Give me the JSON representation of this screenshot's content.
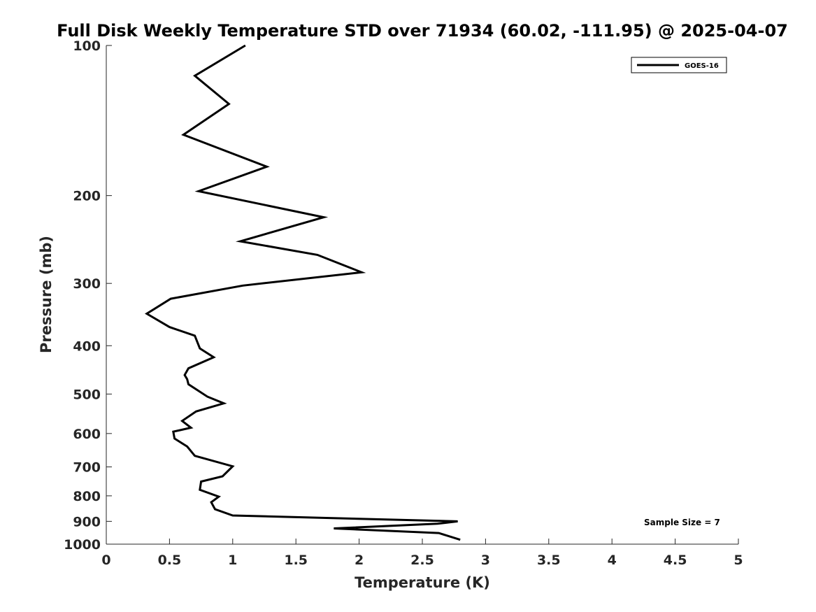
{
  "chart_data": {
    "type": "line",
    "title": "Full Disk Weekly Temperature STD over 71934 (60.02, -111.95) @ 2025-04-07",
    "xlabel": "Temperature (K)",
    "ylabel": "Pressure (mb)",
    "xlim": [
      0,
      5
    ],
    "ylim": [
      100,
      1000
    ],
    "y_scale": "log",
    "y_direction": "reversed",
    "x_ticks": [
      "0",
      "0.5",
      "1",
      "1.5",
      "2",
      "2.5",
      "3",
      "3.5",
      "4",
      "4.5",
      "5"
    ],
    "y_ticks": [
      "100",
      "200",
      "300",
      "400",
      "500",
      "600",
      "700",
      "800",
      "900",
      "1000"
    ],
    "grid": false,
    "legend_position": "top-right",
    "series": [
      {
        "name": "GOES-16",
        "color": "#000000",
        "x": [
          1.1,
          0.7,
          0.97,
          0.61,
          1.27,
          0.73,
          1.72,
          1.06,
          1.67,
          2.02,
          1.08,
          0.51,
          0.32,
          0.5,
          0.7,
          0.74,
          0.85,
          0.65,
          0.62,
          0.64,
          0.65,
          0.8,
          0.93,
          0.71,
          0.6,
          0.67,
          0.53,
          0.54,
          0.64,
          0.7,
          1.0,
          0.92,
          0.75,
          0.74,
          0.89,
          0.83,
          0.86,
          1.0,
          2.78,
          2.62,
          1.8,
          2.63,
          2.8
        ],
        "y": [
          100,
          115,
          131,
          151,
          175,
          196,
          221,
          247,
          263,
          285,
          303,
          322,
          345,
          367,
          382,
          405,
          422,
          444,
          458,
          467,
          478,
          506,
          522,
          542,
          566,
          584,
          595,
          614,
          637,
          665,
          698,
          731,
          749,
          778,
          803,
          824,
          851,
          876,
          900,
          910,
          930,
          950,
          980
        ]
      }
    ],
    "annotations": [
      {
        "text": "Sample Size = 7"
      }
    ]
  }
}
